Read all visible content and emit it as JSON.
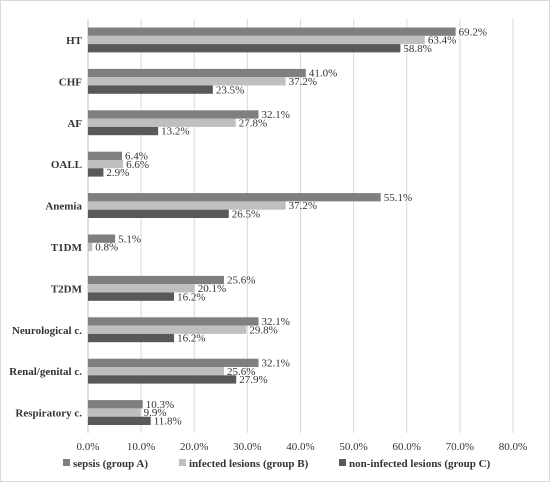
{
  "chart_data": {
    "type": "bar",
    "orientation": "horizontal",
    "categories": [
      "HT",
      "CHF",
      "AF",
      "OALL",
      "Anemia",
      "T1DM",
      "T2DM",
      "Neurological c.",
      "Renal/genital c.",
      "Respiratory c."
    ],
    "series": [
      {
        "name": "sepsis (group A)",
        "color": "#7f7f7f",
        "values": [
          69.2,
          41.0,
          32.1,
          6.4,
          55.1,
          5.1,
          25.6,
          32.1,
          32.1,
          10.3
        ]
      },
      {
        "name": "infected lesions (group B)",
        "color": "#bfbfbf",
        "values": [
          63.4,
          37.2,
          27.8,
          6.6,
          37.2,
          0.8,
          20.1,
          29.8,
          25.6,
          9.9
        ]
      },
      {
        "name": "non-infected lesions (group C)",
        "color": "#595959",
        "values": [
          58.8,
          23.5,
          13.2,
          2.9,
          26.5,
          0.0,
          16.2,
          16.2,
          27.9,
          11.8
        ]
      }
    ],
    "data_labels": [
      [
        "69.2%",
        "63.4%",
        "58.8%"
      ],
      [
        "41.0%",
        "37.2%",
        "23.5%"
      ],
      [
        "32.1%",
        "27.8%",
        "13.2%"
      ],
      [
        "6.4%",
        "6.6%",
        "2.9%"
      ],
      [
        "55.1%",
        "37.2%",
        "26.5%"
      ],
      [
        "5.1%",
        "0.8%",
        ""
      ],
      [
        "25.6%",
        "20.1%",
        "16.2%"
      ],
      [
        "32.1%",
        "29.8%",
        "16.2%"
      ],
      [
        "32.1%",
        "25.6%",
        "27.9%"
      ],
      [
        "10.3%",
        "9.9%",
        "11.8%"
      ]
    ],
    "xlim": [
      0,
      80
    ],
    "x_ticks": [
      "0.0%",
      "10.0%",
      "20.0%",
      "30.0%",
      "40.0%",
      "50.0%",
      "60.0%",
      "70.0%",
      "80.0%"
    ],
    "x_tick_values": [
      0,
      10,
      20,
      30,
      40,
      50,
      60,
      70,
      80
    ],
    "grid": "vertical",
    "legend_position": "bottom",
    "title": "",
    "xlabel": "",
    "ylabel": ""
  }
}
